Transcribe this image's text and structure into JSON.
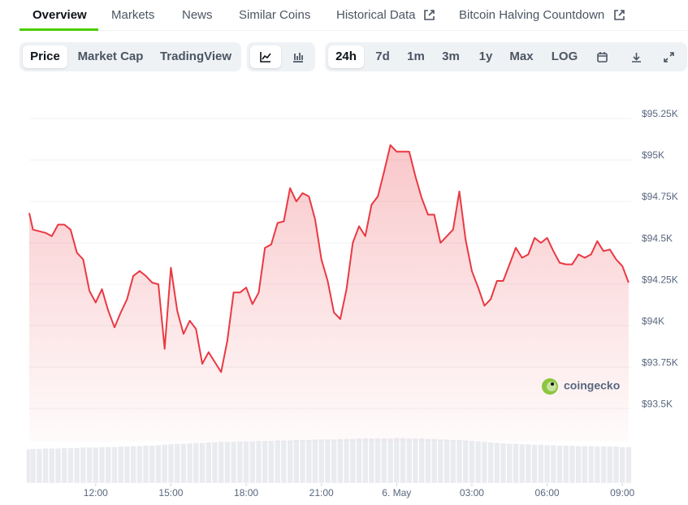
{
  "tabs": [
    "Overview",
    "Markets",
    "News",
    "Similar Coins",
    "Historical Data",
    "Bitcoin Halving Countdown"
  ],
  "toolbar": {
    "views": [
      "Price",
      "Market Cap",
      "TradingView"
    ],
    "ranges": [
      "24h",
      "7d",
      "1m",
      "3m",
      "1y",
      "Max",
      "LOG"
    ]
  },
  "watermark": "coingecko",
  "chart_data": {
    "type": "line",
    "color": "#ea3943",
    "grid": true,
    "xlim": [
      9.35,
      33.35
    ],
    "xticks": [
      {
        "value": 12,
        "label": "12:00"
      },
      {
        "value": 15,
        "label": "15:00"
      },
      {
        "value": 18,
        "label": "18:00"
      },
      {
        "value": 21,
        "label": "21:00"
      },
      {
        "value": 24,
        "label": "6. May"
      },
      {
        "value": 27,
        "label": "03:00"
      },
      {
        "value": 30,
        "label": "06:00"
      },
      {
        "value": 33,
        "label": "09:00"
      }
    ],
    "ylim": [
      93300,
      95500
    ],
    "yticks": [
      {
        "value": 95250,
        "label": "$95.25K"
      },
      {
        "value": 95000,
        "label": "$95K"
      },
      {
        "value": 94750,
        "label": "$94.75K"
      },
      {
        "value": 94500,
        "label": "$94.5K"
      },
      {
        "value": 94250,
        "label": "$94.25K"
      },
      {
        "value": 94000,
        "label": "$94K"
      },
      {
        "value": 93750,
        "label": "$93.75K"
      },
      {
        "value": 93500,
        "label": "$93.5K"
      }
    ],
    "x": [
      9.35,
      9.5,
      9.75,
      10,
      10.25,
      10.5,
      10.75,
      11,
      11.25,
      11.5,
      11.75,
      12,
      12.25,
      12.5,
      12.75,
      13,
      13.25,
      13.5,
      13.75,
      14,
      14.25,
      14.5,
      14.75,
      15,
      15.25,
      15.5,
      15.75,
      16,
      16.25,
      16.5,
      16.75,
      17,
      17.25,
      17.5,
      17.75,
      18,
      18.25,
      18.5,
      18.75,
      19,
      19.25,
      19.5,
      19.75,
      20,
      20.25,
      20.5,
      20.75,
      21,
      21.25,
      21.5,
      21.75,
      22,
      22.25,
      22.5,
      22.75,
      23,
      23.25,
      23.5,
      23.75,
      24,
      24.25,
      24.5,
      24.75,
      25,
      25.25,
      25.5,
      25.75,
      26,
      26.25,
      26.5,
      26.75,
      27,
      27.25,
      27.5,
      27.75,
      28,
      28.25,
      28.5,
      28.75,
      29,
      29.25,
      29.5,
      29.75,
      30,
      30.25,
      30.5,
      30.75,
      31,
      31.25,
      31.5,
      31.75,
      32,
      32.25,
      32.5,
      32.75,
      33,
      33.25
    ],
    "values": [
      94680,
      94580,
      94570,
      94560,
      94540,
      94610,
      94610,
      94580,
      94440,
      94400,
      94210,
      94140,
      94220,
      94090,
      93990,
      94080,
      94160,
      94300,
      94330,
      94300,
      94260,
      94250,
      93860,
      94350,
      94090,
      93950,
      94030,
      93980,
      93770,
      93840,
      93780,
      93720,
      93910,
      94200,
      94200,
      94230,
      94130,
      94200,
      94470,
      94490,
      94620,
      94630,
      94830,
      94750,
      94800,
      94780,
      94640,
      94400,
      94270,
      94080,
      94040,
      94220,
      94500,
      94600,
      94540,
      94730,
      94780,
      94930,
      95090,
      95050,
      95050,
      95050,
      94900,
      94770,
      94670,
      94670,
      94500,
      94540,
      94580,
      94810,
      94520,
      94330,
      94230,
      94120,
      94160,
      94270,
      94270,
      94370,
      94470,
      94410,
      94430,
      94530,
      94500,
      94530,
      94450,
      94380,
      94370,
      94370,
      94430,
      94410,
      94430,
      94510,
      94450,
      94460,
      94400,
      94360,
      94260
    ],
    "volume_lim": [
      0,
      100
    ],
    "volume": [
      72,
      73,
      73,
      74,
      74,
      74,
      75,
      75,
      75,
      76,
      76,
      76,
      77,
      77,
      77,
      78,
      78,
      79,
      79,
      80,
      80,
      81,
      82,
      83,
      84,
      84,
      85,
      86,
      86,
      87,
      87,
      88,
      88,
      88,
      89,
      89,
      89,
      90,
      90,
      90,
      91,
      91,
      91,
      92,
      92,
      92,
      93,
      93,
      93,
      93,
      94,
      94,
      94,
      95,
      95,
      95,
      95,
      95,
      95,
      96,
      96,
      95,
      95,
      95,
      94,
      94,
      93,
      93,
      92,
      92,
      91,
      90,
      89,
      88,
      87,
      86,
      85,
      84,
      84,
      83,
      83,
      82,
      82,
      81,
      81,
      80,
      80,
      80,
      79,
      79,
      79,
      78,
      78,
      78,
      78,
      77,
      77
    ]
  }
}
